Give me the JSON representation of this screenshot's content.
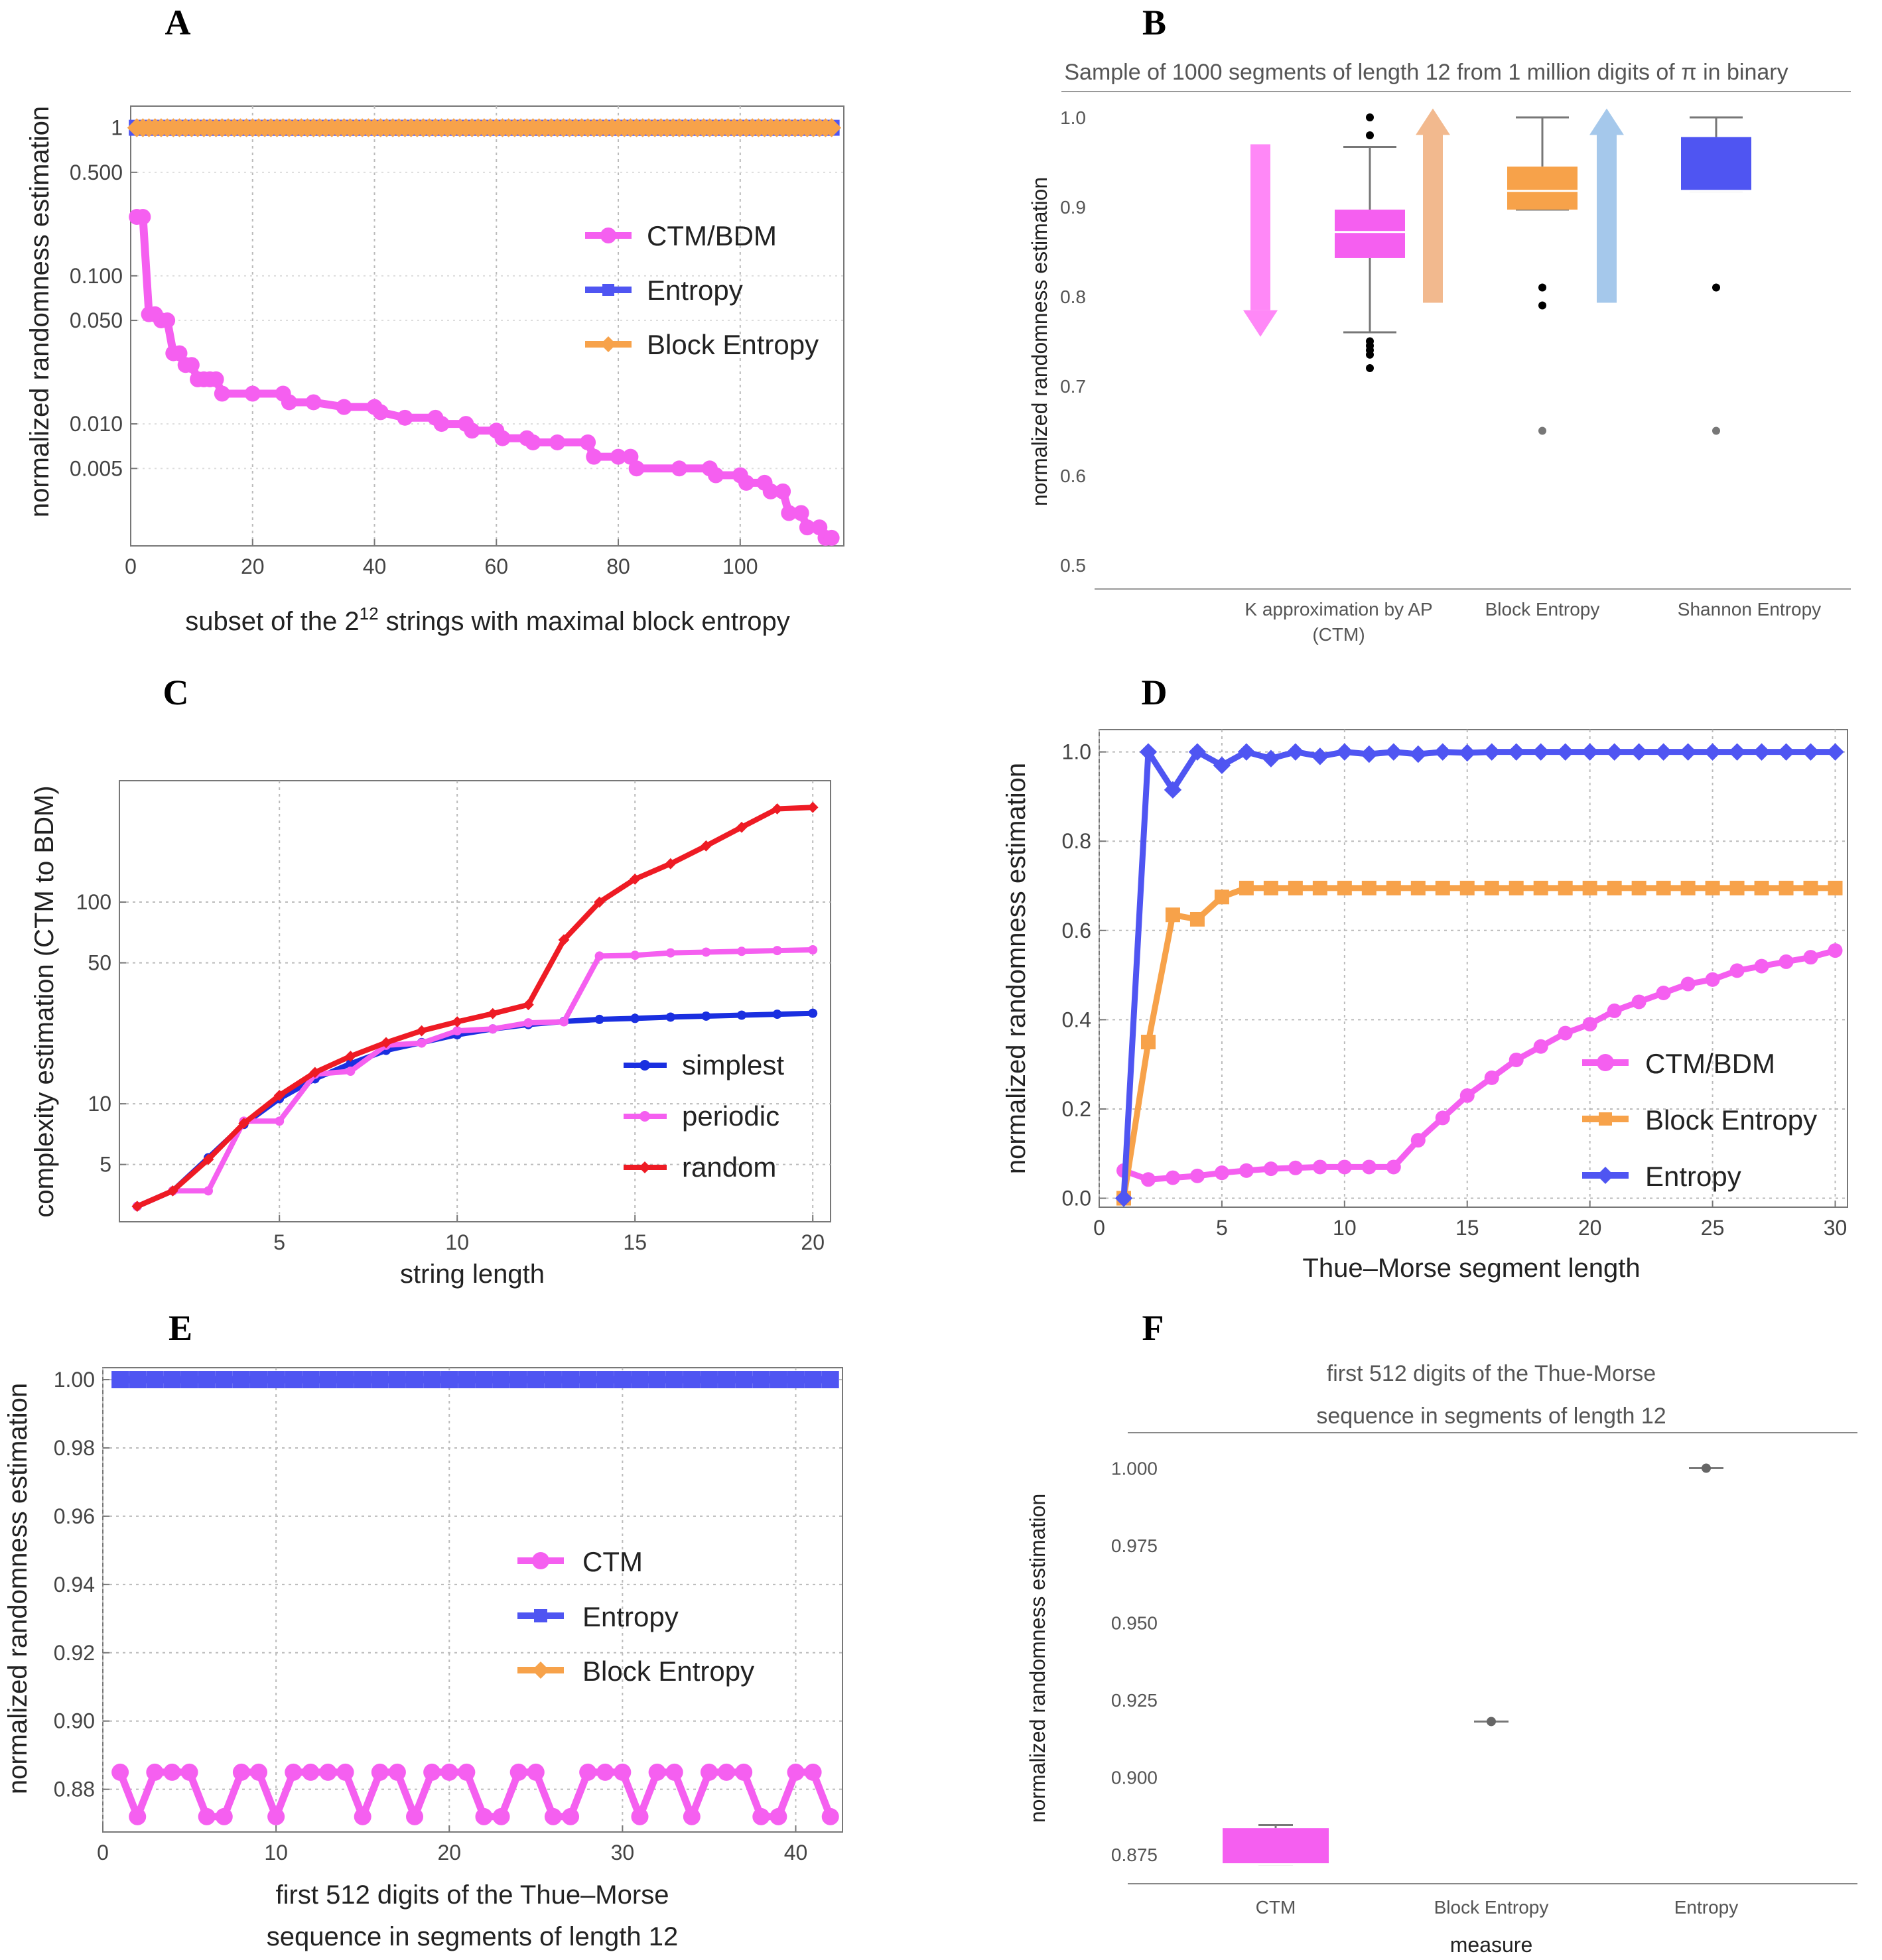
{
  "colors": {
    "magenta": "#f55ff0",
    "blue": "#4f55f2",
    "orange": "#f7a24a",
    "red": "#ee1b24",
    "darkblue": "#1a2fe0",
    "arrow_pink": "#ff88f7",
    "arrow_peach": "#f2b98e",
    "arrow_lightblue": "#a5c8eb"
  },
  "chart_data": [
    {
      "panel": "A",
      "type": "line",
      "ylog": true,
      "xlabel_main": "subset of the 2",
      "xlabel_sup": "12",
      "xlabel_rest": " strings with maximal block entropy",
      "ylabel": "normalized randomness estimation",
      "xlim": [
        0,
        117
      ],
      "ylim": [
        0.0015,
        1.4
      ],
      "xticks": [
        0,
        20,
        40,
        60,
        80,
        100
      ],
      "yticks": [
        1,
        0.5,
        0.1,
        0.05,
        0.01,
        0.005
      ],
      "ytick_labels": [
        "1",
        "0.500",
        "0.100",
        "0.050",
        "0.010",
        "0.005"
      ],
      "series": [
        {
          "name": "CTM/BDM",
          "color": "magenta",
          "marker": "circle",
          "points": [
            [
              1,
              0.25
            ],
            [
              2,
              0.25
            ],
            [
              3,
              0.055
            ],
            [
              4,
              0.055
            ],
            [
              5,
              0.05
            ],
            [
              6,
              0.05
            ],
            [
              7,
              0.03
            ],
            [
              8,
              0.03
            ],
            [
              9,
              0.025
            ],
            [
              10,
              0.025
            ],
            [
              11,
              0.02
            ],
            [
              12,
              0.02
            ],
            [
              13,
              0.02
            ],
            [
              14,
              0.02
            ],
            [
              15,
              0.016
            ],
            [
              20,
              0.016
            ],
            [
              25,
              0.016
            ],
            [
              26,
              0.014
            ],
            [
              30,
              0.014
            ],
            [
              35,
              0.013
            ],
            [
              40,
              0.013
            ],
            [
              41,
              0.012
            ],
            [
              45,
              0.011
            ],
            [
              50,
              0.011
            ],
            [
              51,
              0.01
            ],
            [
              55,
              0.01
            ],
            [
              56,
              0.009
            ],
            [
              60,
              0.009
            ],
            [
              61,
              0.008
            ],
            [
              65,
              0.008
            ],
            [
              66,
              0.0075
            ],
            [
              70,
              0.0075
            ],
            [
              75,
              0.0075
            ],
            [
              76,
              0.006
            ],
            [
              80,
              0.006
            ],
            [
              82,
              0.006
            ],
            [
              83,
              0.005
            ],
            [
              90,
              0.005
            ],
            [
              95,
              0.005
            ],
            [
              96,
              0.0045
            ],
            [
              100,
              0.0045
            ],
            [
              101,
              0.004
            ],
            [
              104,
              0.004
            ],
            [
              105,
              0.0035
            ],
            [
              107,
              0.0035
            ],
            [
              108,
              0.0025
            ],
            [
              110,
              0.0025
            ],
            [
              111,
              0.002
            ],
            [
              113,
              0.002
            ],
            [
              114,
              0.0017
            ],
            [
              115,
              0.0017
            ]
          ]
        },
        {
          "name": "Entropy",
          "color": "blue",
          "marker": "square",
          "constant": 1,
          "from": 1,
          "to": 115
        },
        {
          "name": "Block Entropy",
          "color": "orange",
          "marker": "diamond",
          "constant": 1,
          "from": 1,
          "to": 115
        }
      ]
    },
    {
      "panel": "B",
      "type": "box",
      "title": "Sample of 1000 segments of length 12 from 1 million digits of π in binary",
      "ylabel": "normalized randomness estimation",
      "ylim": [
        0.5,
        1.0
      ],
      "yticks": [
        0.5,
        0.6,
        0.7,
        0.8,
        0.9,
        1.0
      ],
      "ytick_labels": [
        "0.5",
        "0.6",
        "0.7",
        "0.8",
        "0.9",
        "1.0"
      ],
      "categories": [
        "K approximation by AP\n(CTM)",
        "Block Entropy",
        "Shannon Entropy"
      ],
      "boxes": [
        {
          "color": "magenta",
          "min": 0.76,
          "q1": 0.843,
          "median": 0.872,
          "q3": 0.897,
          "max": 0.967,
          "outliers": [
            1.0,
            0.98,
            0.75,
            0.745,
            0.74,
            0.735,
            0.72
          ],
          "arrow": "down",
          "arrow_color": "arrow_pink"
        },
        {
          "color": "orange",
          "min": 0.897,
          "q1": 0.897,
          "median": 0.918,
          "q3": 0.945,
          "max": 1.0,
          "outliers": [
            0.81,
            0.79,
            0.65
          ],
          "arrow": "up",
          "arrow_color": "arrow_peach"
        },
        {
          "color": "blue",
          "min": 0.918,
          "q1": 0.918,
          "median": 0.918,
          "q3": 0.978,
          "max": 1.0,
          "outliers": [
            0.81,
            0.65
          ],
          "arrow": "up",
          "arrow_color": "arrow_lightblue"
        }
      ]
    },
    {
      "panel": "C",
      "type": "line",
      "ylog": true,
      "xlabel": "string length",
      "ylabel": "complexity estimation (CTM to BDM)",
      "xlim": [
        0.5,
        20.5
      ],
      "ylim": [
        2.6,
        400
      ],
      "xticks": [
        5,
        10,
        15,
        20
      ],
      "yticks": [
        5,
        10,
        50,
        100
      ],
      "ytick_labels": [
        "5",
        "10",
        "50",
        "100"
      ],
      "series": [
        {
          "name": "simplest",
          "color": "darkblue",
          "marker": "circle",
          "x": [
            1,
            2,
            3,
            4,
            5,
            6,
            7,
            8,
            9,
            10,
            11,
            12,
            13,
            14,
            15,
            16,
            17,
            18,
            19,
            20
          ],
          "y": [
            3.1,
            3.7,
            5.4,
            7.9,
            10.6,
            13.3,
            15.8,
            18.4,
            20.1,
            22.0,
            23.5,
            24.7,
            25.6,
            26.2,
            26.5,
            26.9,
            27.2,
            27.5,
            27.8,
            28.1
          ]
        },
        {
          "name": "periodic",
          "color": "magenta",
          "marker": "circle",
          "x": [
            1,
            2,
            3,
            4,
            5,
            6,
            7,
            8,
            9,
            10,
            11,
            12,
            13,
            14,
            15,
            16,
            17,
            18,
            19,
            20
          ],
          "y": [
            3.1,
            3.7,
            3.7,
            8.2,
            8.2,
            14.0,
            14.5,
            19.5,
            20.0,
            23.0,
            23.5,
            25.2,
            25.5,
            54,
            54.5,
            56,
            56.5,
            57,
            57.5,
            58
          ]
        },
        {
          "name": "random",
          "color": "red",
          "marker": "diamond",
          "x": [
            1,
            2,
            3,
            4,
            5,
            6,
            7,
            8,
            9,
            10,
            11,
            12,
            13,
            14,
            15,
            16,
            17,
            18,
            19,
            20
          ],
          "y": [
            3.1,
            3.7,
            5.3,
            8.0,
            11.0,
            14.3,
            17.2,
            20.1,
            23.0,
            25.5,
            28.0,
            31.0,
            65,
            100,
            130,
            155,
            190,
            235,
            290,
            295
          ]
        }
      ]
    },
    {
      "panel": "D",
      "type": "line",
      "xlabel": "Thue–Morse segment length",
      "ylabel": "normalized randomness estimation",
      "xlim": [
        0,
        30.5
      ],
      "ylim": [
        -0.02,
        1.05
      ],
      "xticks": [
        0,
        5,
        10,
        15,
        20,
        25,
        30
      ],
      "yticks": [
        0.0,
        0.2,
        0.4,
        0.6,
        0.8,
        1.0
      ],
      "ytick_labels": [
        "0.0",
        "0.2",
        "0.4",
        "0.6",
        "0.8",
        "1.0"
      ],
      "series": [
        {
          "name": "CTM/BDM",
          "color": "magenta",
          "marker": "circle",
          "x": [
            1,
            2,
            3,
            4,
            5,
            6,
            7,
            8,
            9,
            10,
            11,
            12,
            13,
            14,
            15,
            16,
            17,
            18,
            19,
            20,
            21,
            22,
            23,
            24,
            25,
            26,
            27,
            28,
            29,
            30
          ],
          "y": [
            0.062,
            0.042,
            0.046,
            0.05,
            0.057,
            0.062,
            0.066,
            0.068,
            0.07,
            0.07,
            0.07,
            0.07,
            0.13,
            0.18,
            0.23,
            0.27,
            0.31,
            0.34,
            0.37,
            0.39,
            0.42,
            0.44,
            0.46,
            0.48,
            0.49,
            0.51,
            0.52,
            0.53,
            0.54,
            0.555
          ]
        },
        {
          "name": "Block Entropy",
          "color": "orange",
          "marker": "square",
          "x": [
            1,
            2,
            3,
            4,
            5,
            6,
            7,
            8,
            9,
            10,
            11,
            12,
            13,
            14,
            15,
            16,
            17,
            18,
            19,
            20,
            21,
            22,
            23,
            24,
            25,
            26,
            27,
            28,
            29,
            30
          ],
          "y": [
            0.0,
            0.35,
            0.635,
            0.625,
            0.675,
            0.695,
            0.695,
            0.695,
            0.695,
            0.695,
            0.695,
            0.695,
            0.695,
            0.695,
            0.695,
            0.695,
            0.695,
            0.695,
            0.695,
            0.695,
            0.695,
            0.695,
            0.695,
            0.695,
            0.695,
            0.695,
            0.695,
            0.695,
            0.695,
            0.695
          ]
        },
        {
          "name": "Entropy",
          "color": "blue",
          "marker": "diamond",
          "x": [
            1,
            2,
            3,
            4,
            5,
            6,
            7,
            8,
            9,
            10,
            11,
            12,
            13,
            14,
            15,
            16,
            17,
            18,
            19,
            20,
            21,
            22,
            23,
            24,
            25,
            26,
            27,
            28,
            29,
            30
          ],
          "y": [
            0.0,
            1.0,
            0.915,
            1.0,
            0.97,
            1.0,
            0.985,
            1.0,
            0.99,
            1.0,
            0.995,
            1.0,
            0.995,
            1.0,
            0.998,
            1.0,
            1.0,
            1.0,
            1.0,
            1.0,
            1.0,
            1.0,
            1.0,
            1.0,
            1.0,
            1.0,
            1.0,
            1.0,
            1.0,
            1.0
          ]
        }
      ]
    },
    {
      "panel": "E",
      "type": "line",
      "xlabel_lines": [
        "first 512 digits of the Thue–Morse",
        "sequence in segments of length 12"
      ],
      "ylabel": "normalized randomness estimation",
      "xlim": [
        0,
        42.7
      ],
      "ylim": [
        0.8675,
        1.0035
      ],
      "xticks": [
        0,
        10,
        20,
        30,
        40
      ],
      "yticks": [
        0.88,
        0.9,
        0.92,
        0.94,
        0.96,
        0.98,
        1.0
      ],
      "ytick_labels": [
        "0.88",
        "0.90",
        "0.92",
        "0.94",
        "0.96",
        "0.98",
        "1.00"
      ],
      "series": [
        {
          "name": "CTM",
          "color": "magenta",
          "marker": "circle",
          "x": [
            1,
            2,
            3,
            4,
            5,
            6,
            7,
            8,
            9,
            10,
            11,
            12,
            13,
            14,
            15,
            16,
            17,
            18,
            19,
            20,
            21,
            22,
            23,
            24,
            25,
            26,
            27,
            28,
            29,
            30,
            31,
            32,
            33,
            34,
            35,
            36,
            37,
            38,
            39,
            40,
            41,
            42
          ],
          "y": [
            0.885,
            0.872,
            0.885,
            0.885,
            0.885,
            0.872,
            0.872,
            0.885,
            0.885,
            0.872,
            0.885,
            0.885,
            0.885,
            0.885,
            0.872,
            0.885,
            0.885,
            0.872,
            0.885,
            0.885,
            0.885,
            0.872,
            0.872,
            0.885,
            0.885,
            0.872,
            0.872,
            0.885,
            0.885,
            0.885,
            0.872,
            0.885,
            0.885,
            0.872,
            0.885,
            0.885,
            0.885,
            0.872,
            0.872,
            0.885,
            0.885,
            0.872
          ]
        },
        {
          "name": "Entropy",
          "color": "blue",
          "marker": "square",
          "constant": 1.0,
          "from": 1,
          "to": 42
        },
        {
          "name": "Block Entropy",
          "color": "orange",
          "marker": "diamond",
          "hidden": true
        }
      ]
    },
    {
      "panel": "F",
      "type": "box",
      "title_lines": [
        "first 512 digits of the Thue-Morse",
        "sequence in segments of length 12"
      ],
      "xlabel": "measure",
      "ylabel": "normalized randomness estimation",
      "ylim": [
        0.8655,
        1.0115
      ],
      "yticks": [
        0.875,
        0.9,
        0.925,
        0.95,
        0.975,
        1.0
      ],
      "ytick_labels": [
        "0.875",
        "0.900",
        "0.925",
        "0.950",
        "0.975",
        "1.000"
      ],
      "categories": [
        "CTM",
        "Block Entropy",
        "Entropy"
      ],
      "boxes": [
        {
          "color": "magenta",
          "min": 0.8718,
          "q1": 0.8718,
          "median": 0.8718,
          "q3": 0.8835,
          "max": 0.8845
        },
        {
          "color": "gray",
          "min": 0.918,
          "q1": 0.918,
          "median": 0.918,
          "q3": 0.918,
          "max": 0.918
        },
        {
          "color": "gray",
          "min": 1.0,
          "q1": 1.0,
          "median": 1.0,
          "q3": 1.0,
          "max": 1.0
        }
      ]
    }
  ]
}
